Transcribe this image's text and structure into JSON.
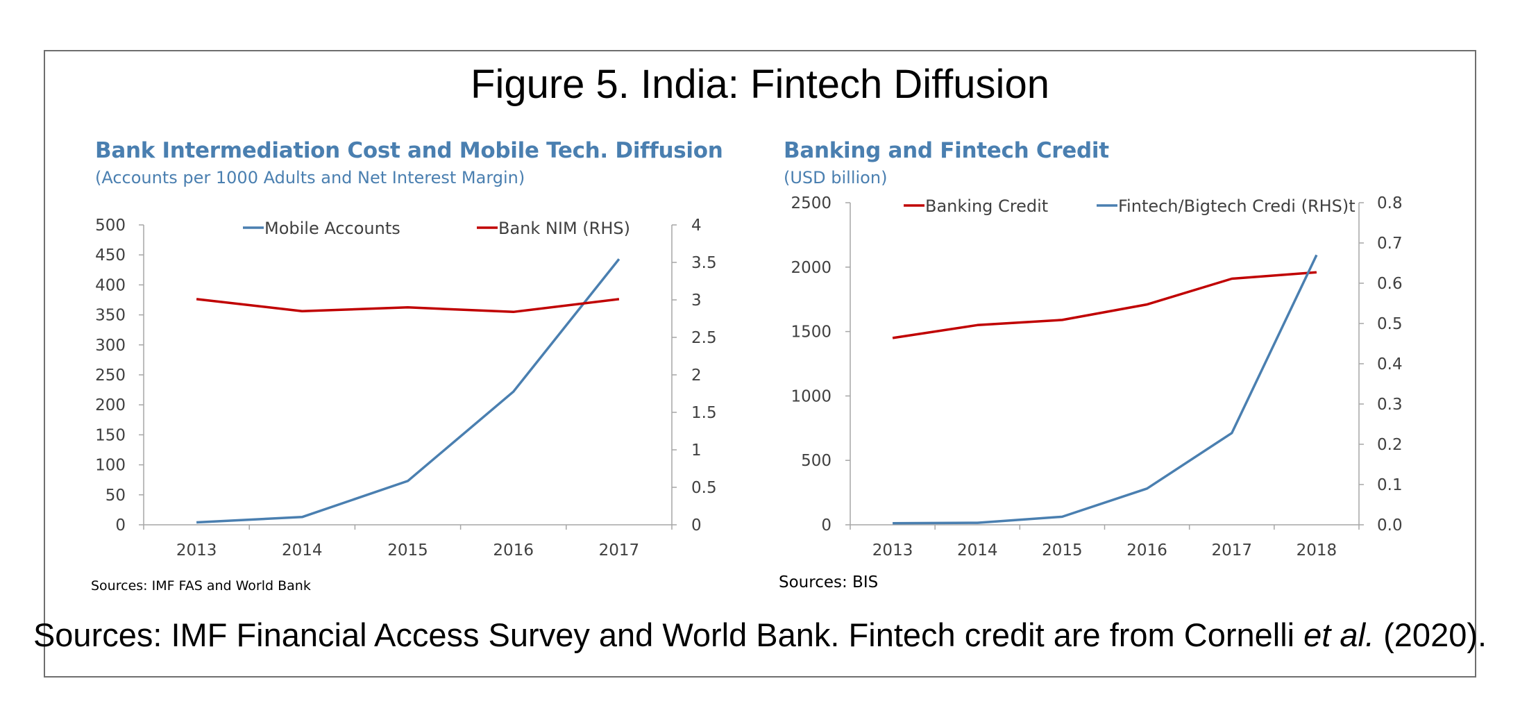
{
  "figure": {
    "title": "Figure 5. India: Fintech Diffusion",
    "footer_main": "Sources: IMF Financial Access Survey and World Bank. Fintech credit are from Cornelli ",
    "footer_italic": "et al.",
    "footer_end": " (2020)."
  },
  "colors": {
    "blue": "#4a7fb0",
    "red": "#c00000",
    "title_blue": "#4a7fb0",
    "axis": "#a6a6a6"
  },
  "chart_data": [
    {
      "type": "line",
      "title": "Bank Intermediation Cost and Mobile Tech. Diffusion",
      "subtitle": "(Accounts per 1000 Adults and Net Interest Margin)",
      "source": "Sources: IMF FAS and World Bank",
      "categories": [
        "2013",
        "2014",
        "2015",
        "2016",
        "2017"
      ],
      "y_left": {
        "ylim": [
          0,
          500
        ],
        "ticks": [
          "0",
          "50",
          "100",
          "150",
          "200",
          "250",
          "300",
          "350",
          "400",
          "450",
          "500"
        ]
      },
      "y_right": {
        "ylim": [
          0,
          4
        ],
        "ticks": [
          "0",
          "0.5",
          "1",
          "1.5",
          "2",
          "2.5",
          "3",
          "3.5",
          "4"
        ]
      },
      "legend_placement": "top",
      "series": [
        {
          "name": "Mobile Accounts",
          "axis": "left",
          "color": "#4a7fb0",
          "values": [
            4,
            13,
            73,
            222,
            443
          ]
        },
        {
          "name": "Bank NIM (RHS)",
          "axis": "right",
          "color": "#c00000",
          "values": [
            3.01,
            2.85,
            2.9,
            2.84,
            3.01
          ]
        }
      ]
    },
    {
      "type": "line",
      "title": "Banking and Fintech Credit",
      "subtitle": "(USD billion)",
      "source": "Sources: BIS",
      "categories": [
        "2013",
        "2014",
        "2015",
        "2016",
        "2017",
        "2018"
      ],
      "y_left": {
        "ylim": [
          0,
          2500
        ],
        "ticks": [
          "0",
          "500",
          "1000",
          "1500",
          "2000",
          "2500"
        ]
      },
      "y_right": {
        "ylim": [
          0,
          0.8
        ],
        "ticks": [
          "0.0",
          "0.1",
          "0.2",
          "0.3",
          "0.4",
          "0.5",
          "0.6",
          "0.7",
          "0.8"
        ]
      },
      "legend_placement": "top",
      "series": [
        {
          "name": "Banking Credit",
          "axis": "left",
          "color": "#c00000",
          "values": [
            1450,
            1550,
            1590,
            1710,
            1910,
            1960
          ]
        },
        {
          "name": "Fintech/Bigtech Credi (RHS)t",
          "axis": "right",
          "color": "#4a7fb0",
          "values": [
            0.004,
            0.005,
            0.02,
            0.09,
            0.228,
            0.67
          ]
        }
      ]
    }
  ]
}
